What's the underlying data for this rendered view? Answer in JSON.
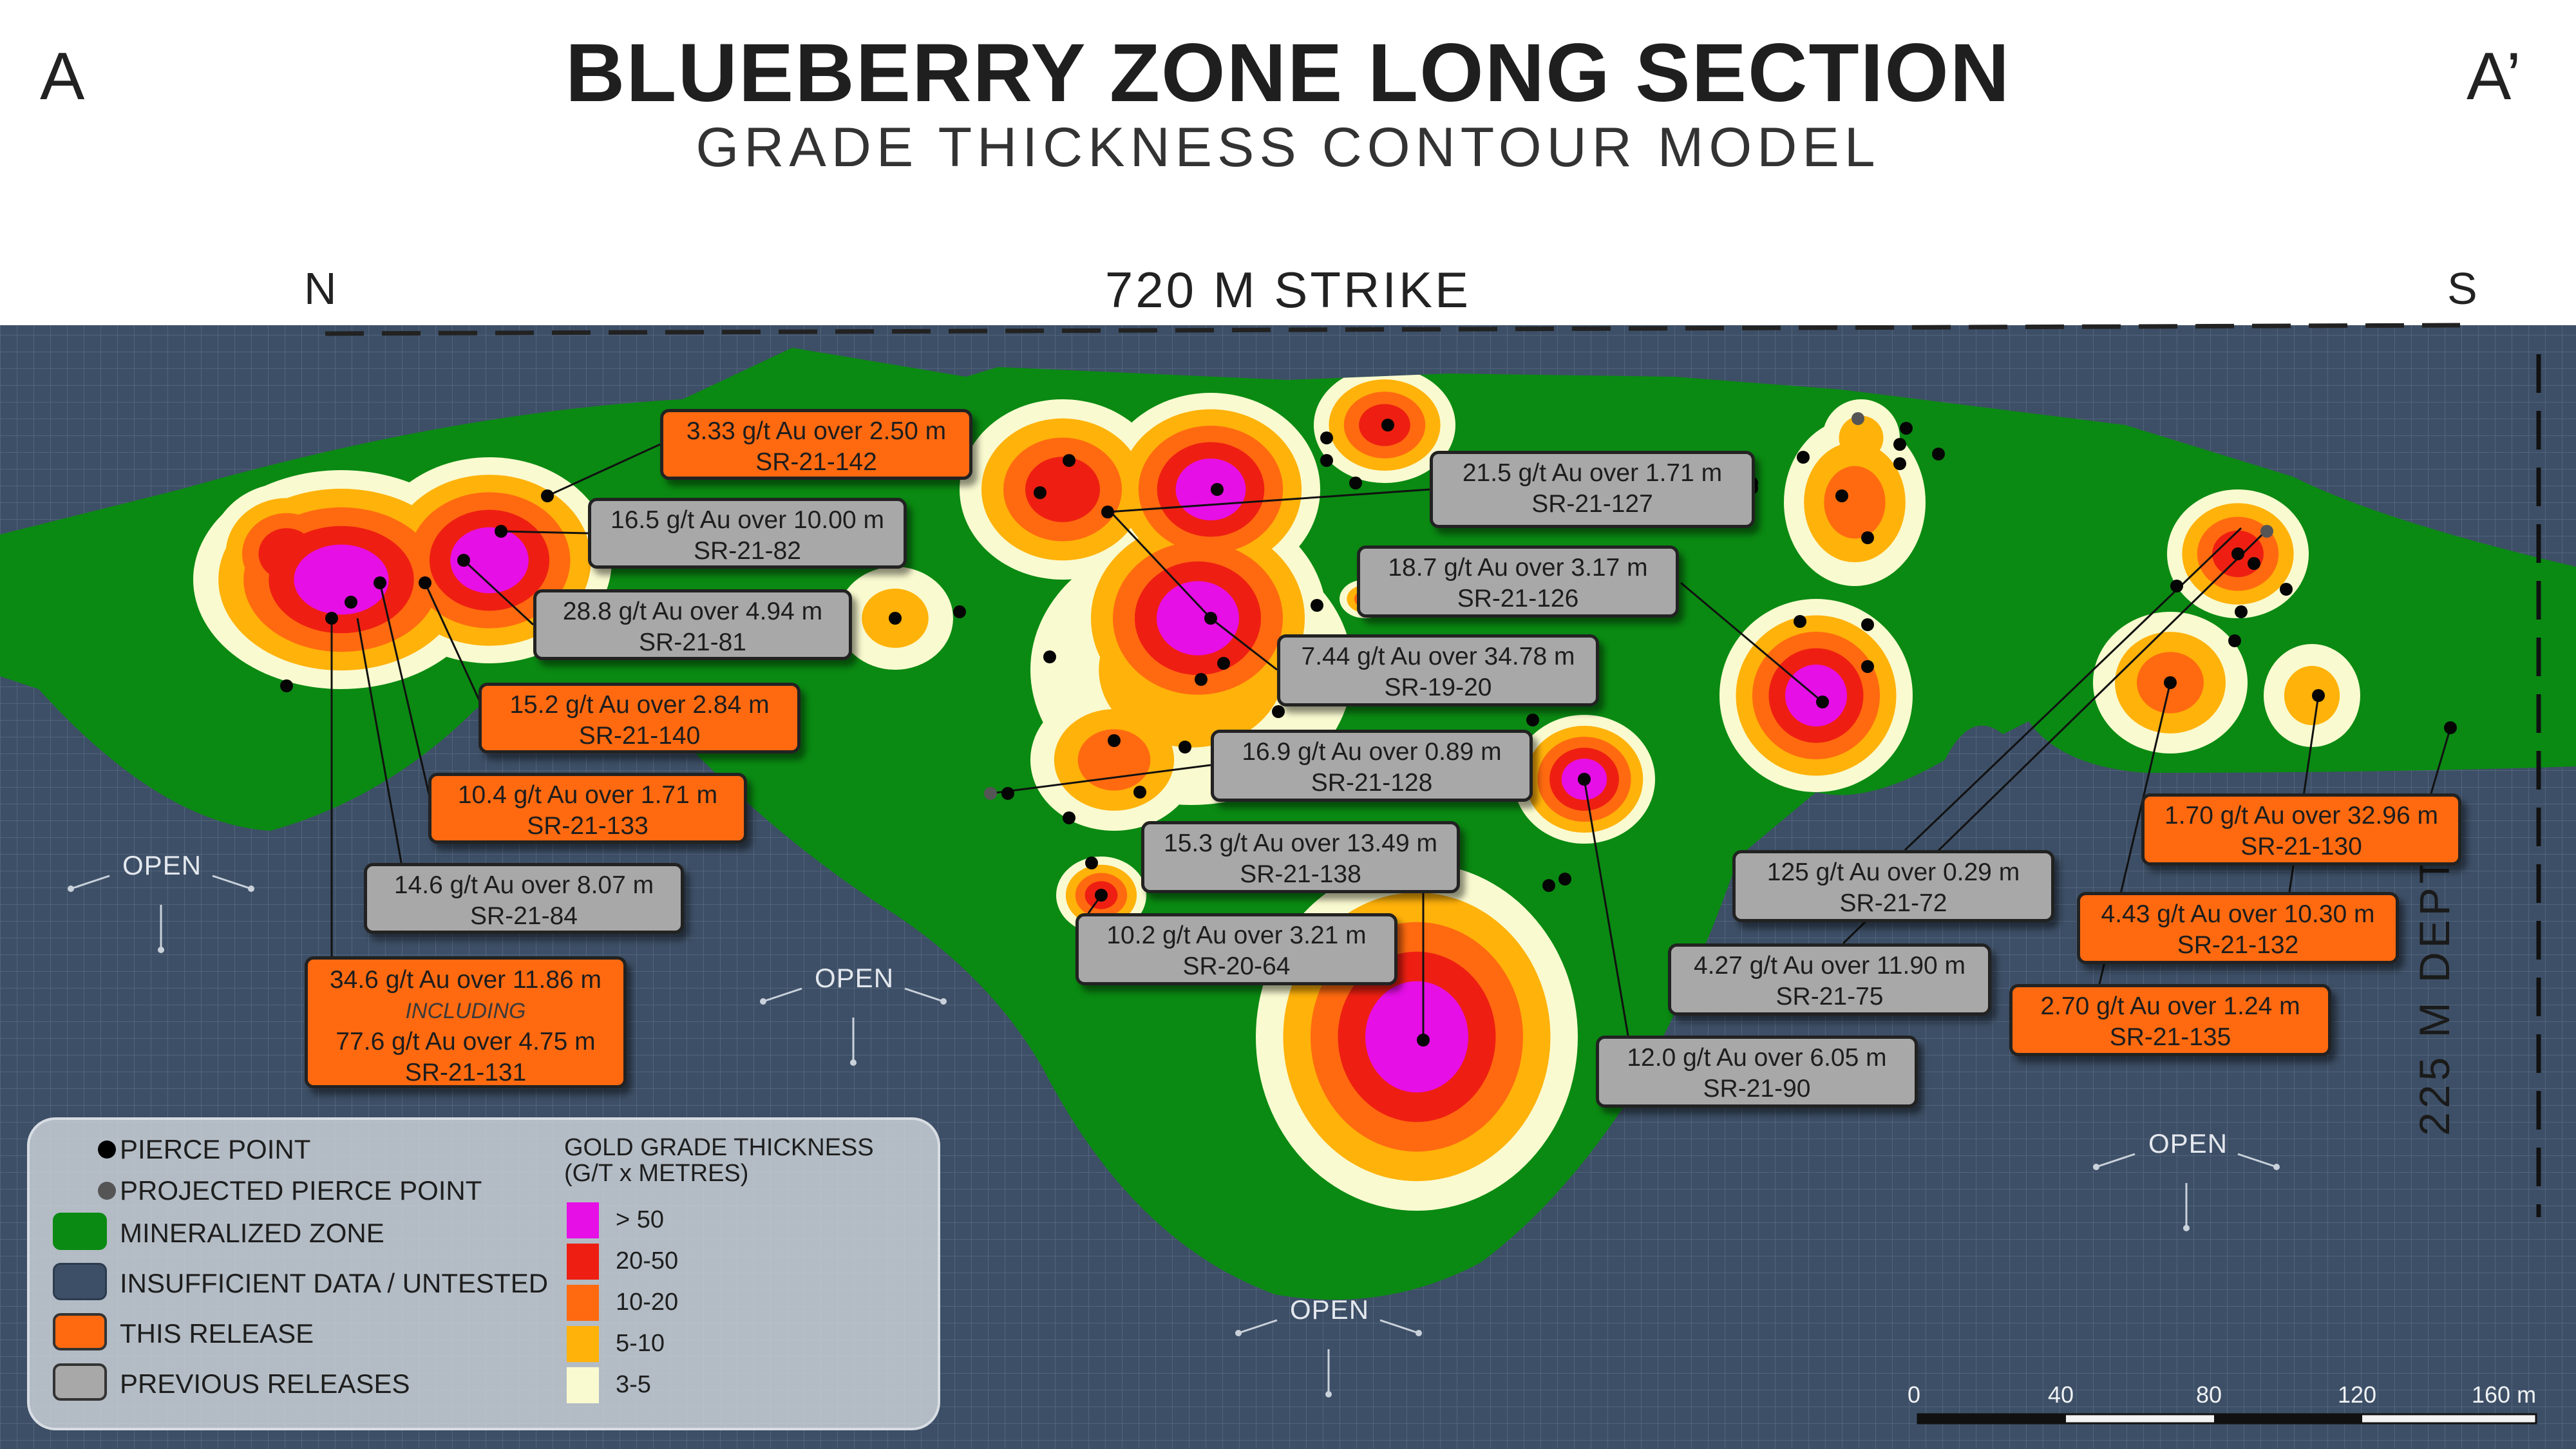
{
  "header": {
    "title": "BLUEBERRY ZONE LONG SECTION",
    "subtitle": "GRADE THICKNESS CONTOUR MODEL",
    "corner_left": "A",
    "corner_right": "A’",
    "north": "N",
    "south": "S",
    "strike": "720 M STRIKE",
    "depth": "225 M DEPTH"
  },
  "colors": {
    "mineralized": "#0a8a12",
    "untested": "#3d4f66",
    "gt_gt50": "#e60fe6",
    "gt_20_50": "#ee1f12",
    "gt_10_20": "#ff6a10",
    "gt_5_10": "#ffb20a",
    "gt_3_5": "#fafad0",
    "this_release": "#ff6a10",
    "previous": "#a8a8a8"
  },
  "labels": [
    {
      "id": "sr-21-142",
      "release": "this",
      "line1": "3.33 g/t Au over 2.50 m",
      "line2": "SR-21-142"
    },
    {
      "id": "sr-21-82",
      "release": "previous",
      "line1": "16.5 g/t Au over 10.00 m",
      "line2": "SR-21-82"
    },
    {
      "id": "sr-21-81",
      "release": "previous",
      "line1": "28.8 g/t Au over 4.94 m",
      "line2": "SR-21-81"
    },
    {
      "id": "sr-21-140",
      "release": "this",
      "line1": "15.2 g/t Au over 2.84 m",
      "line2": "SR-21-140"
    },
    {
      "id": "sr-21-133",
      "release": "this",
      "line1": "10.4 g/t Au over 1.71 m",
      "line2": "SR-21-133"
    },
    {
      "id": "sr-21-84",
      "release": "previous",
      "line1": "14.6 g/t Au over 8.07 m",
      "line2": "SR-21-84"
    },
    {
      "id": "sr-21-131",
      "release": "this",
      "line1": "34.6 g/t Au over 11.86 m",
      "including": "INCLUDING",
      "line3": "77.6 g/t Au over 4.75 m",
      "line2": "SR-21-131"
    },
    {
      "id": "sr-21-127",
      "release": "previous",
      "line1": "21.5 g/t Au over 1.71 m",
      "line2": "SR-21-127"
    },
    {
      "id": "sr-21-126",
      "release": "previous",
      "line1": "18.7 g/t Au over 3.17 m",
      "line2": "SR-21-126"
    },
    {
      "id": "sr-19-20",
      "release": "previous",
      "line1": "7.44 g/t Au over 34.78 m",
      "line2": "SR-19-20"
    },
    {
      "id": "sr-21-128",
      "release": "previous",
      "line1": "16.9 g/t Au over 0.89 m",
      "line2": "SR-21-128"
    },
    {
      "id": "sr-21-138",
      "release": "previous",
      "line1": "15.3 g/t Au over 13.49 m",
      "line2": "SR-21-138"
    },
    {
      "id": "sr-20-64",
      "release": "previous",
      "line1": "10.2 g/t Au over 3.21 m",
      "line2": "SR-20-64"
    },
    {
      "id": "sr-21-72",
      "release": "previous",
      "line1": "125 g/t Au over 0.29 m",
      "line2": "SR-21-72"
    },
    {
      "id": "sr-21-75",
      "release": "previous",
      "line1": "4.27 g/t Au over 11.90 m",
      "line2": "SR-21-75"
    },
    {
      "id": "sr-21-90",
      "release": "previous",
      "line1": "12.0 g/t Au over 6.05 m",
      "line2": "SR-21-90"
    },
    {
      "id": "sr-21-130",
      "release": "this",
      "line1": "1.70 g/t Au over 32.96 m",
      "line2": "SR-21-130"
    },
    {
      "id": "sr-21-132",
      "release": "this",
      "line1": "4.43 g/t Au over 10.30 m",
      "line2": "SR-21-132"
    },
    {
      "id": "sr-21-135",
      "release": "this",
      "line1": "2.70 g/t Au over 1.24 m",
      "line2": "SR-21-135"
    }
  ],
  "open_text": "OPEN",
  "legend": {
    "pierce_point": "PIERCE POINT",
    "projected_pierce_point": "PROJECTED PIERCE POINT",
    "mineralized_zone": "MINERALIZED ZONE",
    "insufficient": "INSUFFICIENT DATA / UNTESTED",
    "this_release": "THIS RELEASE",
    "previous_releases": "PREVIOUS RELEASES",
    "gt_title_1": "GOLD GRADE THICKNESS",
    "gt_title_2": "(G/T x METRES)",
    "gt_classes": [
      "> 50",
      "20-50",
      "10-20",
      "5-10",
      "3-5"
    ]
  },
  "scale": {
    "ticks": [
      "0",
      "40",
      "80",
      "120",
      "160 m"
    ]
  }
}
